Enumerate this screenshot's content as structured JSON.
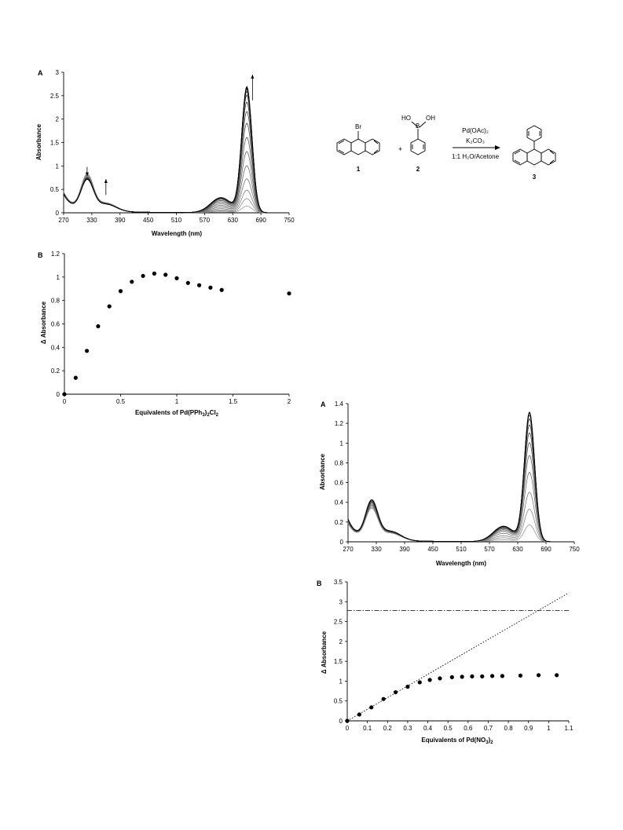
{
  "chart_data": [
    {
      "panel": "A",
      "type": "line",
      "xlabel": "Wavelength (nm)",
      "ylabel": "Absorbance",
      "xlim": [
        270,
        750
      ],
      "ylim": [
        0,
        3
      ],
      "xticks": [
        "270",
        "330",
        "390",
        "450",
        "510",
        "570",
        "630",
        "690",
        "750"
      ],
      "yticks": [
        "0",
        "0.5",
        "1",
        "1.5",
        "2",
        "2.5",
        "3"
      ],
      "peak_wavelength": 660,
      "peak_heights": [
        0.14,
        0.3,
        0.48,
        0.72,
        1.0,
        1.3,
        1.6,
        1.9,
        2.15,
        2.35,
        2.5,
        2.58,
        2.63,
        2.66,
        2.68
      ],
      "uv_band_320_heights": [
        0.74,
        0.72,
        0.71,
        0.69,
        0.68,
        0.67,
        0.66,
        0.66,
        0.65,
        0.65,
        0.64,
        0.64,
        0.64,
        0.63,
        0.63
      ],
      "arrows": [
        {
          "x": 320,
          "direction": "down"
        },
        {
          "x": 360,
          "direction": "up"
        },
        {
          "x": 672,
          "direction": "up"
        }
      ]
    },
    {
      "panel": "B",
      "type": "scatter",
      "xlabel": "Equivalents of Pd(PPh3)2Cl2",
      "ylabel": "Δ Absorbance",
      "xlim": [
        0,
        2
      ],
      "ylim": [
        0,
        1.2
      ],
      "xticks": [
        "0",
        "0.5",
        "1",
        "1.5",
        "2"
      ],
      "yticks": [
        "0",
        "0.2",
        "0.4",
        "0.6",
        "0.8",
        "1",
        "1.2"
      ],
      "points": [
        [
          0,
          0
        ],
        [
          0.1,
          0.14
        ],
        [
          0.2,
          0.37
        ],
        [
          0.3,
          0.58
        ],
        [
          0.4,
          0.75
        ],
        [
          0.5,
          0.88
        ],
        [
          0.6,
          0.96
        ],
        [
          0.7,
          1.01
        ],
        [
          0.8,
          1.03
        ],
        [
          0.9,
          1.02
        ],
        [
          1.0,
          0.99
        ],
        [
          1.1,
          0.95
        ],
        [
          1.2,
          0.93
        ],
        [
          1.3,
          0.91
        ],
        [
          1.4,
          0.89
        ],
        [
          2.0,
          0.86
        ]
      ]
    },
    {
      "panel": "A",
      "type": "line",
      "xlabel": "Wavelength (nm)",
      "ylabel": "Absorbance",
      "xlim": [
        270,
        750
      ],
      "ylim": [
        0,
        1.4
      ],
      "xticks": [
        "270",
        "330",
        "390",
        "450",
        "510",
        "570",
        "630",
        "690",
        "750"
      ],
      "yticks": [
        "0",
        "0.2",
        "0.4",
        "0.6",
        "0.8",
        "1",
        "1.2",
        "1.4"
      ],
      "peak_wavelength": 655,
      "peak_heights": [
        0.17,
        0.33,
        0.5,
        0.7,
        0.87,
        1.0,
        1.1,
        1.18,
        1.24,
        1.28,
        1.3,
        1.31
      ],
      "uv_band_320_heights": [
        0.3,
        0.31,
        0.32,
        0.33,
        0.34,
        0.35,
        0.36,
        0.36,
        0.37,
        0.37,
        0.38,
        0.38
      ]
    },
    {
      "panel": "B",
      "type": "scatter",
      "xlabel": "Equivalents of Pd(NO3)2",
      "ylabel": "Δ Absorbance",
      "xlim": [
        0,
        1.1
      ],
      "ylim": [
        0,
        3.5
      ],
      "xticks": [
        "0",
        "0.1",
        "0.2",
        "0.3",
        "0.4",
        "0.5",
        "0.6",
        "0.7",
        "0.8",
        "0.9",
        "1",
        "1.1"
      ],
      "yticks": [
        "0",
        "0.5",
        "1",
        "1.5",
        "2",
        "2.5",
        "3",
        "3.5"
      ],
      "points": [
        [
          0,
          0
        ],
        [
          0.06,
          0.16
        ],
        [
          0.12,
          0.34
        ],
        [
          0.18,
          0.55
        ],
        [
          0.24,
          0.72
        ],
        [
          0.3,
          0.86
        ],
        [
          0.36,
          0.97
        ],
        [
          0.41,
          1.03
        ],
        [
          0.46,
          1.07
        ],
        [
          0.52,
          1.1
        ],
        [
          0.57,
          1.11
        ],
        [
          0.62,
          1.12
        ],
        [
          0.67,
          1.12
        ],
        [
          0.72,
          1.13
        ],
        [
          0.77,
          1.13
        ],
        [
          0.86,
          1.14
        ],
        [
          0.95,
          1.15
        ],
        [
          1.04,
          1.15
        ]
      ],
      "fit_line": {
        "slope": 2.93,
        "intercept": 0
      },
      "plateau_line_y": 2.78
    }
  ],
  "scheme": {
    "compound1": "1",
    "compound2": "2",
    "compound3": "3",
    "substituent_br": "Br",
    "boronic_ho": "HO",
    "boronic_b": "B",
    "boronic_oh": "OH",
    "plus": "+",
    "reagent_catalyst": "Pd(OAc)₂",
    "reagent_base": "K₂CO₃",
    "reagent_solvent": "1:1 H₂O/Acetone"
  }
}
